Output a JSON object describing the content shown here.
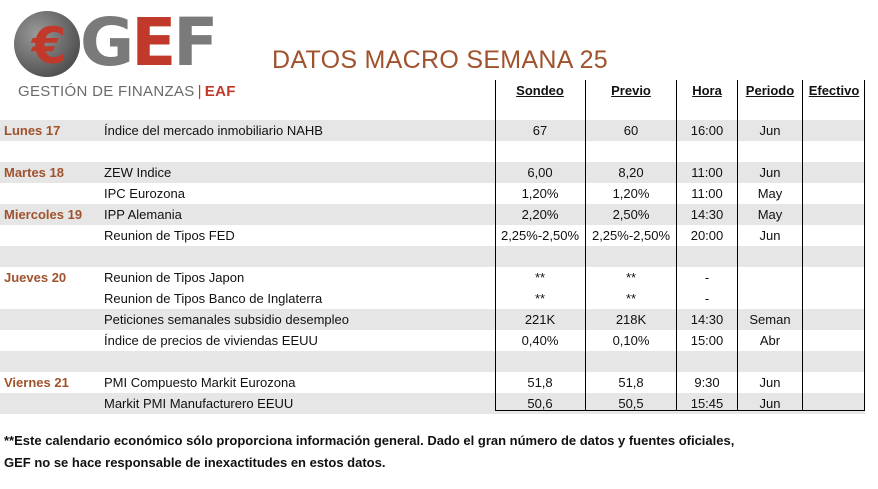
{
  "logo": {
    "letters": [
      "G",
      "E",
      "F"
    ],
    "subtitle": "GESTIÓN DE FINANZAS",
    "separator": "|",
    "subtitle_tag": "EAF",
    "icon": "euro-icon"
  },
  "title": "DATOS MACRO SEMANA 25",
  "headers": [
    "Sondeo",
    "Previo",
    "Hora",
    "Periodo",
    "Efectivo"
  ],
  "rows": [
    {
      "day": "Lunes 17",
      "indicator": "Índice del mercado inmobiliario NAHB",
      "sondeo": "67",
      "previo": "60",
      "hora": "16:00",
      "periodo": "Jun",
      "efectivo": "",
      "shade": true
    },
    {
      "day": "",
      "indicator": "",
      "sondeo": "",
      "previo": "",
      "hora": "",
      "periodo": "",
      "efectivo": "",
      "shade": false
    },
    {
      "day": "Martes 18",
      "indicator": "ZEW  Indice",
      "sondeo": "6,00",
      "previo": "8,20",
      "hora": "11:00",
      "periodo": "Jun",
      "efectivo": "",
      "shade": true
    },
    {
      "day": "",
      "indicator": "IPC Eurozona",
      "sondeo": "1,20%",
      "previo": "1,20%",
      "hora": "11:00",
      "periodo": "May",
      "efectivo": "",
      "shade": false
    },
    {
      "day": "Miercoles 19",
      "indicator": "IPP Alemania",
      "sondeo": "2,20%",
      "previo": "2,50%",
      "hora": "14:30",
      "periodo": "May",
      "efectivo": "",
      "shade": true
    },
    {
      "day": "",
      "indicator": "Reunion de Tipos FED",
      "sondeo": "2,25%-2,50%",
      "previo": "2,25%-2,50%",
      "hora": "20:00",
      "periodo": "Jun",
      "efectivo": "",
      "shade": false
    },
    {
      "day": "",
      "indicator": "",
      "sondeo": "",
      "previo": "",
      "hora": "",
      "periodo": "",
      "efectivo": "",
      "shade": true
    },
    {
      "day": "Jueves 20",
      "indicator": "Reunion de Tipos Japon",
      "sondeo": "**",
      "previo": "**",
      "hora": "-",
      "periodo": "",
      "efectivo": "",
      "shade": false
    },
    {
      "day": "",
      "indicator": "Reunion de Tipos Banco de Inglaterra",
      "sondeo": "**",
      "previo": "**",
      "hora": "-",
      "periodo": "",
      "efectivo": "",
      "shade": false
    },
    {
      "day": "",
      "indicator": "Peticiones semanales subsidio desempleo",
      "sondeo": "221K",
      "previo": "218K",
      "hora": "14:30",
      "periodo": "Seman",
      "efectivo": "",
      "shade": true
    },
    {
      "day": "",
      "indicator": "Índice de precios de viviendas EEUU",
      "sondeo": "0,40%",
      "previo": "0,10%",
      "hora": "15:00",
      "periodo": "Abr",
      "efectivo": "",
      "shade": false
    },
    {
      "day": "",
      "indicator": "",
      "sondeo": "",
      "previo": "",
      "hora": "",
      "periodo": "",
      "efectivo": "",
      "shade": true
    },
    {
      "day": "Viernes 21",
      "indicator": "PMI Compuesto Markit Eurozona",
      "sondeo": "51,8",
      "previo": "51,8",
      "hora": "9:30",
      "periodo": "Jun",
      "efectivo": "",
      "shade": false
    },
    {
      "day": "",
      "indicator": "Markit PMI Manufacturero EEUU",
      "sondeo": "50,6",
      "previo": "50,5",
      "hora": "15:45",
      "periodo": "Jun",
      "efectivo": "",
      "shade": true
    }
  ],
  "footer": [
    "**Este calendario económico sólo proporciona información general. Dado el gran número de datos y fuentes oficiales,",
    "GEF no se hace responsable de inexactitudes en estos datos."
  ],
  "colors": {
    "accent": "#c0392b",
    "day_label": "#a0522d",
    "shade": "#e6e6e6"
  }
}
